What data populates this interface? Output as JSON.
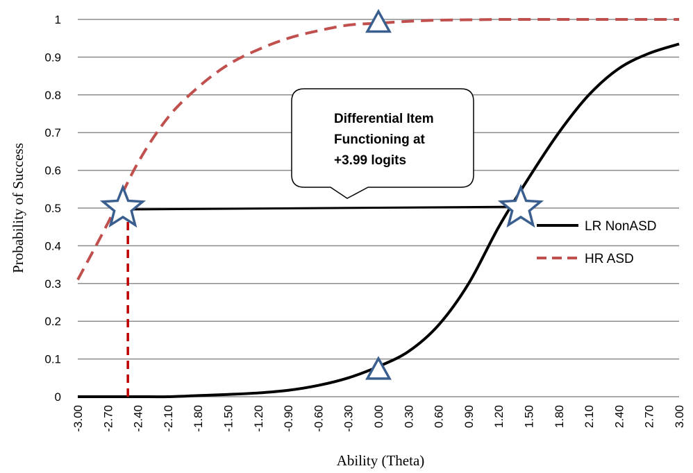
{
  "chart_data": {
    "type": "line",
    "xlabel": "Ability (Theta)",
    "ylabel": "Probability of Success",
    "xlim": [
      -3.0,
      3.0
    ],
    "ylim": [
      0,
      1
    ],
    "y_ticks": [
      "0",
      "0.1",
      "0.2",
      "0.3",
      "0.4",
      "0.5",
      "0.6",
      "0.7",
      "0.8",
      "0.9",
      "1"
    ],
    "x_ticks": [
      "-3.00",
      "-2.70",
      "-2.40",
      "-2.10",
      "-1.80",
      "-1.50",
      "-1.20",
      "-0.90",
      "-0.60",
      "-0.30",
      "0.00",
      "0.30",
      "0.60",
      "0.90",
      "1.20",
      "1.50",
      "1.80",
      "2.10",
      "2.40",
      "2.70",
      "3.00"
    ],
    "x": [
      -3.0,
      -2.7,
      -2.4,
      -2.1,
      -1.8,
      -1.5,
      -1.2,
      -0.9,
      -0.6,
      -0.3,
      0.0,
      0.3,
      0.6,
      0.9,
      1.2,
      1.5,
      1.8,
      2.1,
      2.4,
      2.7,
      3.0
    ],
    "grid": "horizontal",
    "legend_position": "right",
    "series": [
      {
        "name": "LR NonASD",
        "color": "#000000",
        "style": "solid",
        "values": [
          0.0,
          0.0,
          0.0,
          0.0,
          0.003,
          0.006,
          0.01,
          0.017,
          0.03,
          0.05,
          0.08,
          0.12,
          0.19,
          0.3,
          0.45,
          0.58,
          0.7,
          0.8,
          0.87,
          0.91,
          0.935
        ]
      },
      {
        "name": "HR ASD",
        "color": "#c0504d",
        "style": "dashed",
        "values": [
          0.31,
          0.46,
          0.62,
          0.74,
          0.82,
          0.88,
          0.92,
          0.95,
          0.97,
          0.985,
          0.99,
          0.995,
          0.998,
          0.999,
          1.0,
          1.0,
          1.0,
          1.0,
          1.0,
          1.0,
          1.0
        ]
      }
    ],
    "annotations": {
      "callout_text": [
        "Differential Item",
        "Functioning at",
        "+3.99 logits"
      ],
      "dif_line": {
        "x_start": -2.5,
        "x_end": 1.45,
        "y": 0.5
      },
      "dropline_x": -2.5,
      "stars": [
        {
          "x": -2.55,
          "y": 0.5
        },
        {
          "x": 1.42,
          "y": 0.5
        }
      ],
      "triangles": [
        {
          "x": 0.0,
          "y": 0.99
        },
        {
          "x": 0.0,
          "y": 0.07
        }
      ],
      "marker_color": "#3a5f8f"
    }
  }
}
